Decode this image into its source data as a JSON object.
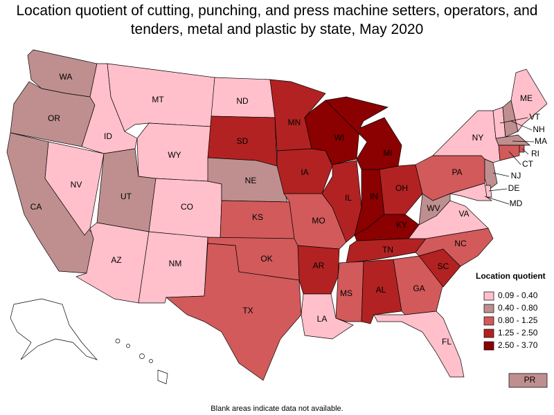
{
  "title": "Location quotient of cutting, punching, and press machine setters, operators, and tenders, metal and plastic by state, May 2020",
  "legend": {
    "title": "Location quotient",
    "bins": [
      {
        "label": "0.09 - 0.40",
        "color": "#ffc0cb"
      },
      {
        "label": "0.40 - 0.80",
        "color": "#bf8f8f"
      },
      {
        "label": "0.80 - 1.25",
        "color": "#d25a5a"
      },
      {
        "label": "1.25 - 2.50",
        "color": "#b22222"
      },
      {
        "label": "2.50 - 3.70",
        "color": "#8b0000"
      }
    ]
  },
  "states": [
    {
      "label": "WA",
      "color": "#bf8f8f"
    },
    {
      "label": "OR",
      "color": "#bf8f8f"
    },
    {
      "label": "CA",
      "color": "#bf8f8f"
    },
    {
      "label": "NV",
      "color": "#ffc0cb"
    },
    {
      "label": "ID",
      "color": "#ffc0cb"
    },
    {
      "label": "MT",
      "color": "#ffc0cb"
    },
    {
      "label": "WY",
      "color": "#ffc0cb"
    },
    {
      "label": "UT",
      "color": "#bf8f8f"
    },
    {
      "label": "CO",
      "color": "#ffc0cb"
    },
    {
      "label": "AZ",
      "color": "#ffc0cb"
    },
    {
      "label": "NM",
      "color": "#ffc0cb"
    },
    {
      "label": "ND",
      "color": "#ffc0cb"
    },
    {
      "label": "SD",
      "color": "#b22222"
    },
    {
      "label": "NE",
      "color": "#bf8f8f"
    },
    {
      "label": "KS",
      "color": "#d25a5a"
    },
    {
      "label": "OK",
      "color": "#d25a5a"
    },
    {
      "label": "TX",
      "color": "#d25a5a"
    },
    {
      "label": "MN",
      "color": "#b22222"
    },
    {
      "label": "IA",
      "color": "#b22222"
    },
    {
      "label": "MO",
      "color": "#d25a5a"
    },
    {
      "label": "AR",
      "color": "#b22222"
    },
    {
      "label": "LA",
      "color": "#ffc0cb"
    },
    {
      "label": "WI",
      "color": "#8b0000"
    },
    {
      "label": "IL",
      "color": "#b22222"
    },
    {
      "label": "MI",
      "color": "#8b0000"
    },
    {
      "label": "IN",
      "color": "#8b0000"
    },
    {
      "label": "OH",
      "color": "#b22222"
    },
    {
      "label": "KY",
      "color": "#8b0000"
    },
    {
      "label": "TN",
      "color": "#b22222"
    },
    {
      "label": "MS",
      "color": "#d25a5a"
    },
    {
      "label": "AL",
      "color": "#b22222"
    },
    {
      "label": "GA",
      "color": "#d25a5a"
    },
    {
      "label": "FL",
      "color": "#ffc0cb"
    },
    {
      "label": "SC",
      "color": "#b22222"
    },
    {
      "label": "NC",
      "color": "#d25a5a"
    },
    {
      "label": "VA",
      "color": "#ffc0cb"
    },
    {
      "label": "WV",
      "color": "#bf8f8f"
    },
    {
      "label": "PA",
      "color": "#d25a5a"
    },
    {
      "label": "NY",
      "color": "#ffc0cb"
    },
    {
      "label": "VT",
      "color": "#ffc0cb"
    },
    {
      "label": "NH",
      "color": "#bf8f8f"
    },
    {
      "label": "ME",
      "color": "#ffc0cb"
    },
    {
      "label": "MA",
      "color": "#bf8f8f"
    },
    {
      "label": "RI",
      "color": "#d25a5a"
    },
    {
      "label": "CT",
      "color": "#d25a5a"
    },
    {
      "label": "NJ",
      "color": "#bf8f8f"
    },
    {
      "label": "DE",
      "color": "#ffc0cb"
    },
    {
      "label": "MD",
      "color": "#ffc0cb"
    },
    {
      "label": "PR",
      "color": "#bf8f8f"
    }
  ],
  "note": "Blank areas indicate data not available."
}
